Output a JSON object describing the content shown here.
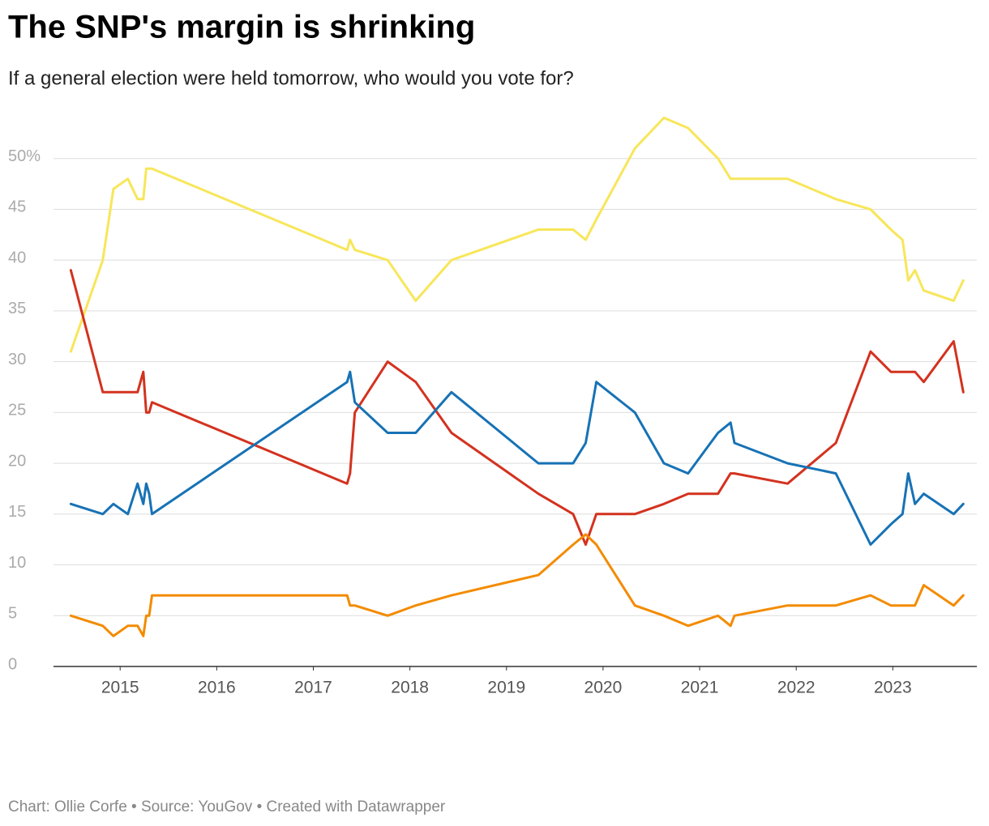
{
  "chart_data": {
    "type": "line",
    "title": "The SNP's margin is shrinking",
    "subtitle": "If a general election were held tomorrow, who would you vote for?",
    "source": "Chart: Ollie Corfe • Source: YouGov • Created with Datawrapper",
    "x": [
      2014.49,
      2014.82,
      2014.93,
      2015.08,
      2015.18,
      2015.24,
      2015.27,
      2015.3,
      2015.33,
      2017.35,
      2017.38,
      2017.43,
      2017.77,
      2018.06,
      2018.43,
      2019.33,
      2019.69,
      2019.82,
      2019.93,
      2020.33,
      2020.63,
      2020.88,
      2021.19,
      2021.32,
      2021.36,
      2021.91,
      2022.41,
      2022.77,
      2022.98,
      2023.1,
      2023.16,
      2023.23,
      2023.32,
      2023.63,
      2023.73
    ],
    "series": [
      {
        "color": "#f7e65a",
        "values": [
          31,
          40,
          47,
          48,
          46,
          46,
          49,
          49,
          49,
          41,
          42,
          41,
          40,
          36,
          40,
          43,
          43,
          42,
          44,
          51,
          54,
          53,
          50,
          48,
          48,
          48,
          46,
          45,
          43,
          42,
          38,
          39,
          37,
          36,
          38
        ]
      },
      {
        "color": "#d3321f",
        "values": [
          39,
          27,
          27,
          27,
          27,
          29,
          25,
          25,
          26,
          18,
          19,
          25,
          30,
          28,
          23,
          17,
          15,
          12,
          15,
          15,
          16,
          17,
          17,
          19,
          19,
          18,
          22,
          31,
          29,
          29,
          29,
          29,
          28,
          32,
          27
        ]
      },
      {
        "color": "#1772b5",
        "values": [
          16,
          15,
          16,
          15,
          18,
          16,
          18,
          17,
          15,
          28,
          29,
          26,
          23,
          23,
          27,
          20,
          20,
          22,
          28,
          25,
          20,
          19,
          23,
          24,
          22,
          20,
          19,
          12,
          14,
          15,
          19,
          16,
          17,
          15,
          16
        ]
      },
      {
        "color": "#f38b00",
        "values": [
          5,
          4,
          3,
          4,
          4,
          3,
          5,
          5,
          7,
          7,
          6,
          6,
          5,
          6,
          7,
          9,
          12,
          13,
          12,
          6,
          5,
          4,
          5,
          4,
          5,
          6,
          6,
          7,
          6,
          6,
          6,
          6,
          8,
          6,
          7
        ]
      }
    ],
    "xlim": [
      2014.31,
      2023.87
    ],
    "xticks": [
      2015,
      2016,
      2017,
      2018,
      2019,
      2020,
      2021,
      2022,
      2023
    ],
    "ylim": [
      0,
      55
    ],
    "yticks": [
      0,
      5,
      10,
      15,
      20,
      25,
      30,
      35,
      40,
      45,
      {
        "value": 50,
        "label": "50%"
      }
    ],
    "grid": true
  }
}
